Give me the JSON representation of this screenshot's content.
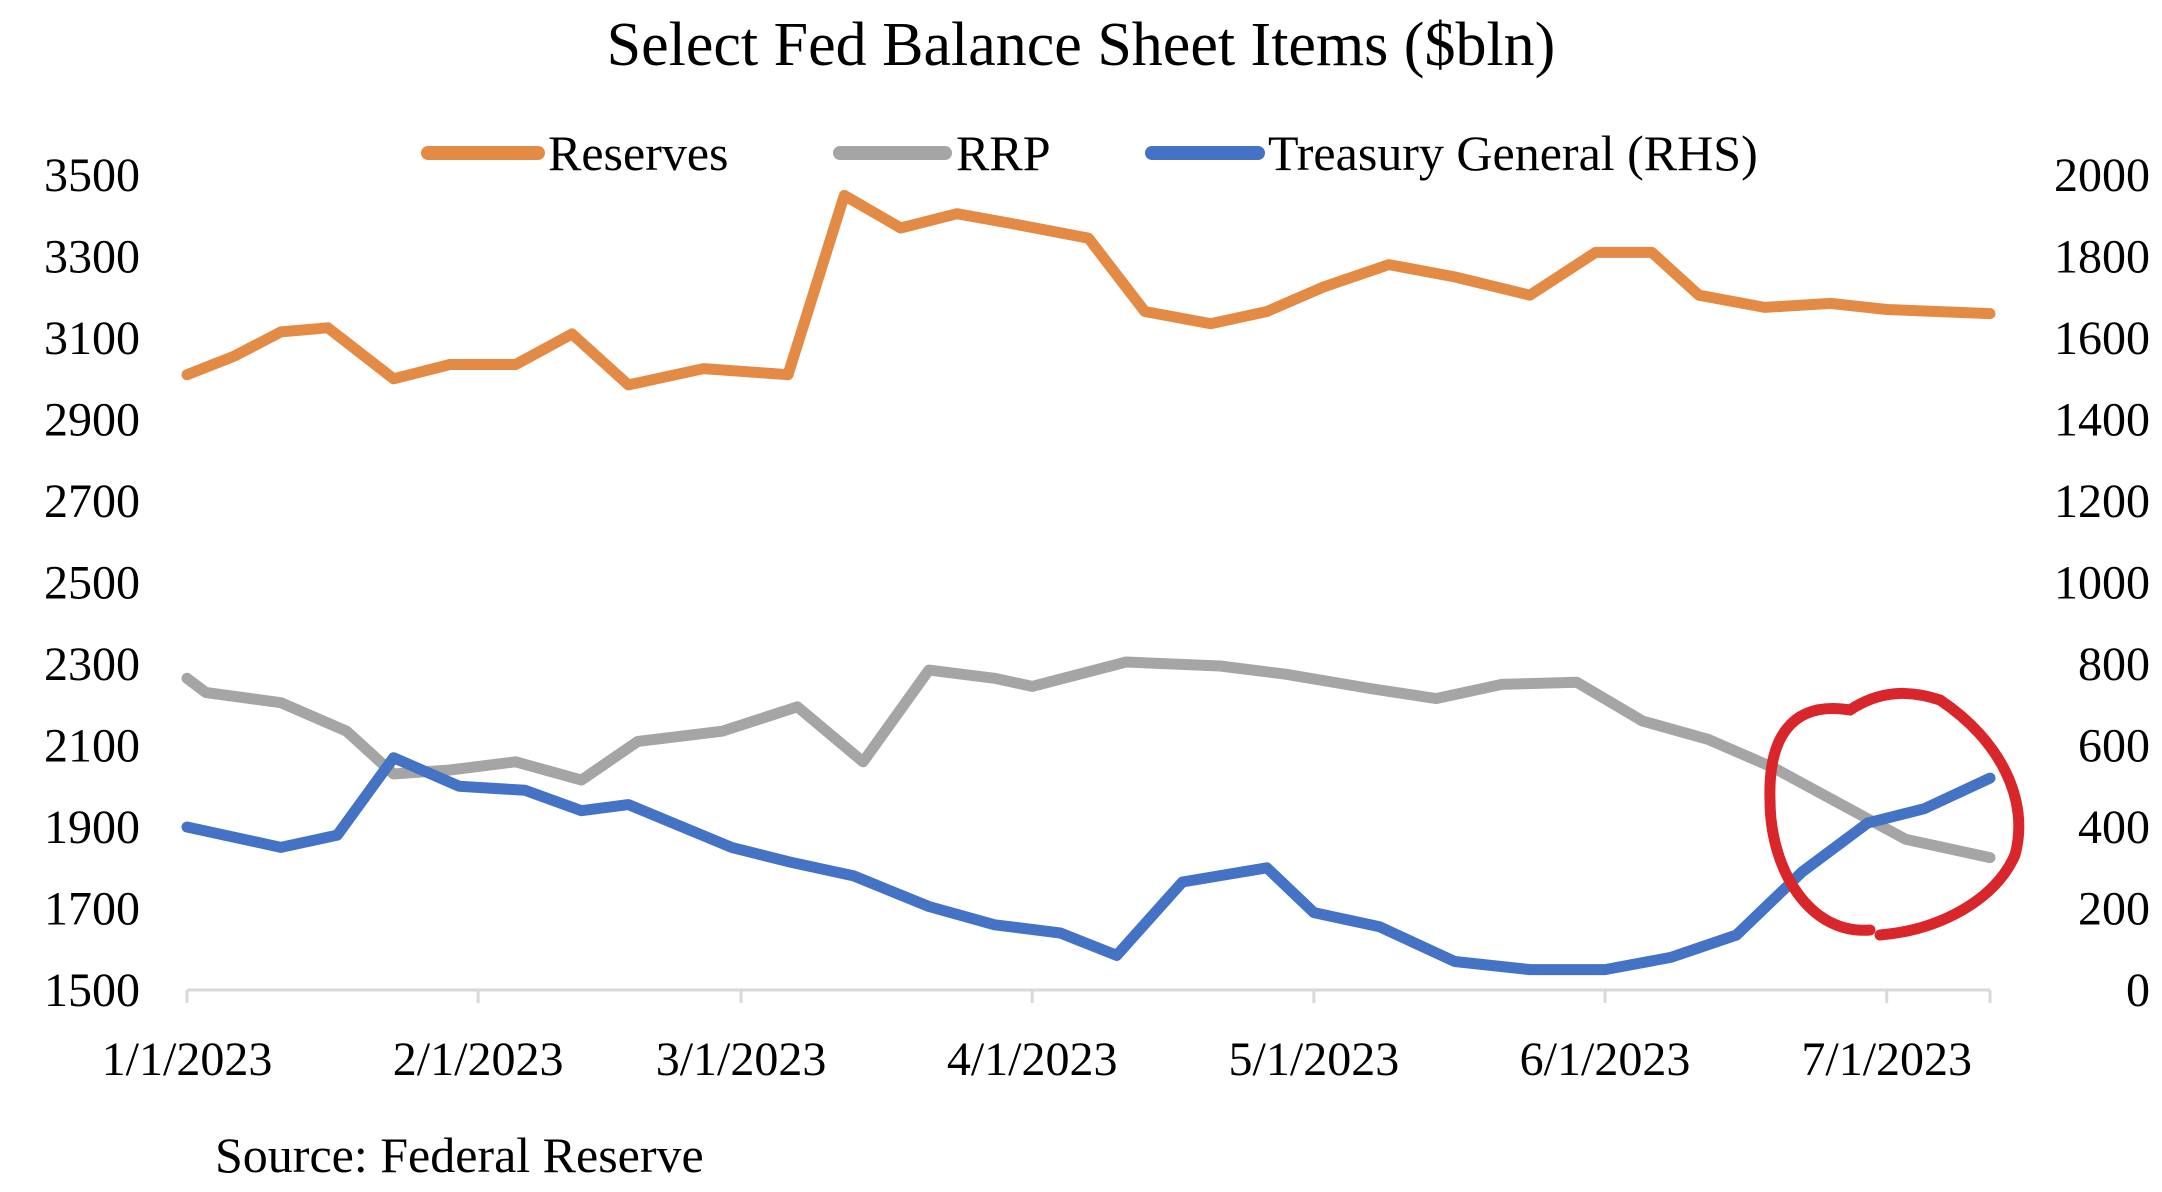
{
  "chart_data": {
    "type": "line",
    "title": "Select Fed Balance Sheet Items ($bln)",
    "source": "Source: Federal Reserve",
    "x_tick_labels": [
      "1/1/2023",
      "2/1/2023",
      "3/1/2023",
      "4/1/2023",
      "5/1/2023",
      "6/1/2023",
      "7/1/2023"
    ],
    "x_tick_dates": [
      "2023-01-01",
      "2023-02-01",
      "2023-03-01",
      "2023-04-01",
      "2023-05-01",
      "2023-06-01",
      "2023-07-01"
    ],
    "x_range": [
      "2023-01-01",
      "2023-07-12"
    ],
    "left_axis": {
      "ticks": [
        "3500",
        "3300",
        "3100",
        "2900",
        "2700",
        "2500",
        "2300",
        "2100",
        "1900",
        "1700",
        "1500"
      ],
      "range": [
        1500,
        3500
      ]
    },
    "right_axis": {
      "ticks": [
        "2000",
        "1800",
        "1600",
        "1400",
        "1200",
        "1000",
        "800",
        "600",
        "400",
        "200",
        "0"
      ],
      "range": [
        0,
        2000
      ]
    },
    "grid": false,
    "legend_position": "top",
    "series": [
      {
        "name": "Reserves",
        "axis": "left",
        "color": "#e38a45",
        "points": [
          [
            "2023-01-01",
            3010
          ],
          [
            "2023-01-06",
            3055
          ],
          [
            "2023-01-11",
            3115
          ],
          [
            "2023-01-16",
            3125
          ],
          [
            "2023-01-23",
            3000
          ],
          [
            "2023-01-29",
            3035
          ],
          [
            "2023-02-05",
            3035
          ],
          [
            "2023-02-11",
            3110
          ],
          [
            "2023-02-17",
            2985
          ],
          [
            "2023-02-25",
            3025
          ],
          [
            "2023-03-06",
            3010
          ],
          [
            "2023-03-12",
            3450
          ],
          [
            "2023-03-18",
            3370
          ],
          [
            "2023-03-24",
            3405
          ],
          [
            "2023-03-30",
            3380
          ],
          [
            "2023-04-07",
            3345
          ],
          [
            "2023-04-13",
            3165
          ],
          [
            "2023-04-20",
            3135
          ],
          [
            "2023-04-26",
            3165
          ],
          [
            "2023-05-02",
            3225
          ],
          [
            "2023-05-09",
            3280
          ],
          [
            "2023-05-16",
            3250
          ],
          [
            "2023-05-24",
            3205
          ],
          [
            "2023-05-31",
            3310
          ],
          [
            "2023-06-06",
            3310
          ],
          [
            "2023-06-11",
            3205
          ],
          [
            "2023-06-18",
            3175
          ],
          [
            "2023-06-25",
            3185
          ],
          [
            "2023-07-01",
            3170
          ],
          [
            "2023-07-12",
            3160
          ]
        ]
      },
      {
        "name": "RRP",
        "axis": "left",
        "color": "#a5a5a5",
        "points": [
          [
            "2023-01-01",
            2265
          ],
          [
            "2023-01-03",
            2230
          ],
          [
            "2023-01-11",
            2205
          ],
          [
            "2023-01-18",
            2135
          ],
          [
            "2023-01-23",
            2030
          ],
          [
            "2023-01-29",
            2040
          ],
          [
            "2023-02-05",
            2060
          ],
          [
            "2023-02-12",
            2015
          ],
          [
            "2023-02-18",
            2110
          ],
          [
            "2023-02-27",
            2135
          ],
          [
            "2023-03-07",
            2195
          ],
          [
            "2023-03-14",
            2060
          ],
          [
            "2023-03-21",
            2285
          ],
          [
            "2023-03-28",
            2265
          ],
          [
            "2023-04-01",
            2245
          ],
          [
            "2023-04-11",
            2305
          ],
          [
            "2023-04-21",
            2295
          ],
          [
            "2023-04-28",
            2275
          ],
          [
            "2023-05-07",
            2240
          ],
          [
            "2023-05-14",
            2215
          ],
          [
            "2023-05-21",
            2250
          ],
          [
            "2023-05-29",
            2255
          ],
          [
            "2023-06-05",
            2160
          ],
          [
            "2023-06-12",
            2115
          ],
          [
            "2023-06-19",
            2045
          ],
          [
            "2023-06-27",
            1945
          ],
          [
            "2023-07-03",
            1870
          ],
          [
            "2023-07-12",
            1825
          ]
        ]
      },
      {
        "name": "Treasury General (RHS)",
        "axis": "right",
        "color": "#4472c4",
        "points": [
          [
            "2023-01-01",
            400
          ],
          [
            "2023-01-11",
            350
          ],
          [
            "2023-01-17",
            380
          ],
          [
            "2023-01-23",
            570
          ],
          [
            "2023-01-30",
            500
          ],
          [
            "2023-02-06",
            490
          ],
          [
            "2023-02-12",
            440
          ],
          [
            "2023-02-17",
            455
          ],
          [
            "2023-02-28",
            350
          ],
          [
            "2023-03-06",
            315
          ],
          [
            "2023-03-13",
            280
          ],
          [
            "2023-03-21",
            205
          ],
          [
            "2023-03-28",
            160
          ],
          [
            "2023-04-04",
            140
          ],
          [
            "2023-04-10",
            85
          ],
          [
            "2023-04-17",
            265
          ],
          [
            "2023-04-26",
            300
          ],
          [
            "2023-05-01",
            190
          ],
          [
            "2023-05-08",
            155
          ],
          [
            "2023-05-16",
            70
          ],
          [
            "2023-05-24",
            50
          ],
          [
            "2023-06-01",
            50
          ],
          [
            "2023-06-08",
            80
          ],
          [
            "2023-06-15",
            135
          ],
          [
            "2023-06-22",
            290
          ],
          [
            "2023-06-29",
            410
          ],
          [
            "2023-07-05",
            445
          ],
          [
            "2023-07-12",
            520
          ]
        ]
      }
    ]
  }
}
